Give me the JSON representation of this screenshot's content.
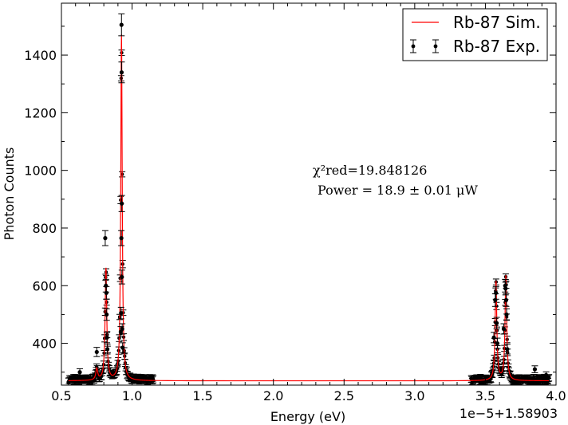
{
  "chart_data": {
    "type": "scatter",
    "title": "",
    "xlabel": "Energy (eV)",
    "ylabel": "Photon Counts",
    "x_offset_label": "1e−5+1.58903",
    "xlim": [
      0.5,
      4.0
    ],
    "ylim": [
      255,
      1580
    ],
    "xticks": [
      "0.5",
      "1.0",
      "1.5",
      "2.0",
      "2.5",
      "3.0",
      "3.5",
      "4.0"
    ],
    "yticks": [
      "400",
      "600",
      "800",
      "1000",
      "1200",
      "1400"
    ],
    "grid": false,
    "legend_position": "top-right",
    "legend": [
      {
        "label": "Rb-87 Sim.",
        "kind": "line"
      },
      {
        "label": "Rb-87 Exp.",
        "kind": "errorbar"
      }
    ],
    "annotation": {
      "chi_label": "χ²red=19.848126",
      "power_label": "Power = 18.9 ± 0.01 μW"
    },
    "colors": {
      "sim": "#ff0000",
      "exp": "#000000"
    },
    "series": [
      {
        "name": "Rb-87 Sim.",
        "style": "line",
        "baseline": 270,
        "peaks": [
          {
            "x": 0.75,
            "amp": 40,
            "width": 0.008
          },
          {
            "x": 0.815,
            "amp": 390,
            "width": 0.007
          },
          {
            "x": 0.925,
            "amp": 1200,
            "width": 0.006
          },
          {
            "x": 3.575,
            "amp": 345,
            "width": 0.007
          },
          {
            "x": 3.645,
            "amp": 365,
            "width": 0.007
          }
        ],
        "sampled_ranges": [
          [
            0.55,
            1.15
          ],
          [
            3.4,
            3.95
          ]
        ],
        "gap_range": [
          1.15,
          3.4
        ]
      },
      {
        "name": "Rb-87 Exp.",
        "style": "errorbar",
        "points": [
          {
            "x": 0.63,
            "y": 300,
            "err": 12
          },
          {
            "x": 0.75,
            "y": 370,
            "err": 16
          },
          {
            "x": 0.81,
            "y": 765,
            "err": 26
          },
          {
            "x": 0.815,
            "y": 600,
            "err": 22
          },
          {
            "x": 0.818,
            "y": 575,
            "err": 22
          },
          {
            "x": 0.82,
            "y": 500,
            "err": 20
          },
          {
            "x": 0.822,
            "y": 420,
            "err": 18
          },
          {
            "x": 0.825,
            "y": 380,
            "err": 17
          },
          {
            "x": 0.92,
            "y": 440,
            "err": 18
          },
          {
            "x": 0.922,
            "y": 505,
            "err": 20
          },
          {
            "x": 0.924,
            "y": 765,
            "err": 26
          },
          {
            "x": 0.925,
            "y": 1505,
            "err": 38
          },
          {
            "x": 0.926,
            "y": 1340,
            "err": 36
          },
          {
            "x": 0.927,
            "y": 885,
            "err": 28
          },
          {
            "x": 0.928,
            "y": 630,
            "err": 24
          },
          {
            "x": 0.93,
            "y": 450,
            "err": 18
          },
          {
            "x": 0.933,
            "y": 385,
            "err": 17
          },
          {
            "x": 3.56,
            "y": 420,
            "err": 18
          },
          {
            "x": 3.57,
            "y": 550,
            "err": 22
          },
          {
            "x": 3.575,
            "y": 575,
            "err": 22
          },
          {
            "x": 3.58,
            "y": 470,
            "err": 20
          },
          {
            "x": 3.585,
            "y": 400,
            "err": 18
          },
          {
            "x": 3.63,
            "y": 450,
            "err": 18
          },
          {
            "x": 3.64,
            "y": 600,
            "err": 22
          },
          {
            "x": 3.643,
            "y": 590,
            "err": 22
          },
          {
            "x": 3.647,
            "y": 550,
            "err": 22
          },
          {
            "x": 3.65,
            "y": 500,
            "err": 20
          },
          {
            "x": 3.655,
            "y": 380,
            "err": 17
          },
          {
            "x": 3.85,
            "y": 310,
            "err": 12
          },
          {
            "x": 3.93,
            "y": 290,
            "err": 11
          }
        ],
        "noise_ranges": [
          [
            0.55,
            1.15
          ],
          [
            3.4,
            3.95
          ]
        ],
        "noise_level": 275
      }
    ]
  }
}
